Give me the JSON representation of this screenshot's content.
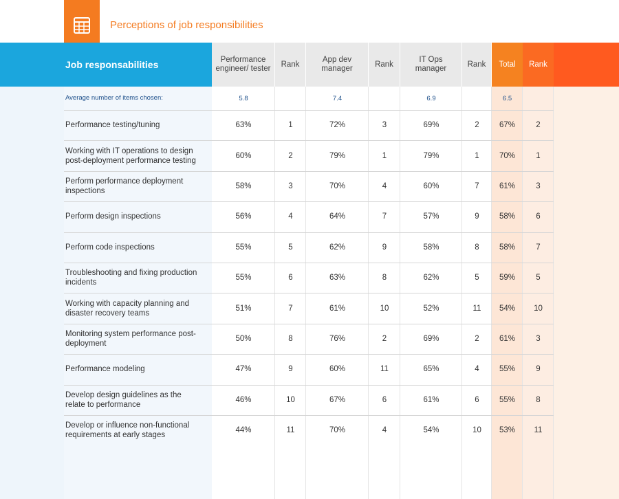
{
  "header": {
    "title": "Perceptions of job responsibilities"
  },
  "table": {
    "row_header": "Job responsabilities",
    "columns": [
      "Performance engineer/ tester",
      "Rank",
      "App dev manager",
      "Rank",
      "IT Ops manager",
      "Rank",
      "Total",
      "Rank"
    ],
    "average_label": "Average number of items chosen:",
    "averages": {
      "performance": "5.8",
      "app_dev": "7.4",
      "it_ops": "6.9",
      "total": "6.5"
    },
    "rows": [
      {
        "label": "Performance testing/tuning",
        "values": [
          "63%",
          "1",
          "72%",
          "3",
          "69%",
          "2",
          "67%",
          "2"
        ]
      },
      {
        "label": "Working with IT operations to design post-deployment performance testing",
        "values": [
          "60%",
          "2",
          "79%",
          "1",
          "79%",
          "1",
          "70%",
          "1"
        ]
      },
      {
        "label": "Perform performance deployment inspections",
        "values": [
          "58%",
          "3",
          "70%",
          "4",
          "60%",
          "7",
          "61%",
          "3"
        ]
      },
      {
        "label": "Perform design inspections",
        "values": [
          "56%",
          "4",
          "64%",
          "7",
          "57%",
          "9",
          "58%",
          "6"
        ]
      },
      {
        "label": "Perform code inspections",
        "values": [
          "55%",
          "5",
          "62%",
          "9",
          "58%",
          "8",
          "58%",
          "7"
        ]
      },
      {
        "label": "Troubleshooting and fixing production incidents",
        "values": [
          "55%",
          "6",
          "63%",
          "8",
          "62%",
          "5",
          "59%",
          "5"
        ]
      },
      {
        "label": "Working with capacity planning and disaster recovery teams",
        "values": [
          "51%",
          "7",
          "61%",
          "10",
          "52%",
          "11",
          "54%",
          "10"
        ]
      },
      {
        "label": "Monitoring system performance post-deployment",
        "values": [
          "50%",
          "8",
          "76%",
          "2",
          "69%",
          "2",
          "61%",
          "3"
        ]
      },
      {
        "label": "Performance modeling",
        "values": [
          "47%",
          "9",
          "60%",
          "11",
          "65%",
          "4",
          "55%",
          "9"
        ]
      },
      {
        "label": "Develop design guidelines as the relate to performance",
        "values": [
          "46%",
          "10",
          "67%",
          "6",
          "61%",
          "6",
          "55%",
          "8"
        ]
      },
      {
        "label": "Develop or influence non-functional requirements at early stages",
        "values": [
          "44%",
          "11",
          "70%",
          "4",
          "54%",
          "10",
          "53%",
          "11"
        ]
      }
    ]
  }
}
